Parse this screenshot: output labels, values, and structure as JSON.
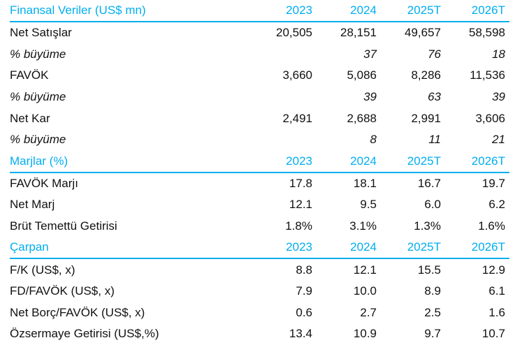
{
  "accent_color": "#00AEEF",
  "sections": [
    {
      "title": "Finansal Veriler (US$ mn)",
      "years": [
        "2023",
        "2024",
        "2025T",
        "2026T"
      ],
      "rows": [
        {
          "label": "Net Satışlar",
          "values": [
            "20,505",
            "28,151",
            "49,657",
            "58,598"
          ],
          "italic": false
        },
        {
          "label": "% büyüme",
          "values": [
            "",
            "37",
            "76",
            "18"
          ],
          "italic": true
        },
        {
          "label": "FAVÖK",
          "values": [
            "3,660",
            "5,086",
            "8,286",
            "11,536"
          ],
          "italic": false
        },
        {
          "label": "% büyüme",
          "values": [
            "",
            "39",
            "63",
            "39"
          ],
          "italic": true
        },
        {
          "label": "Net Kar",
          "values": [
            "2,491",
            "2,688",
            "2,991",
            "3,606"
          ],
          "italic": false
        },
        {
          "label": "% büyüme",
          "values": [
            "",
            "8",
            "11",
            "21"
          ],
          "italic": true
        }
      ]
    },
    {
      "title": "Marjlar (%)",
      "years": [
        "2023",
        "2024",
        "2025T",
        "2026T"
      ],
      "rows": [
        {
          "label": "FAVÖK Marjı",
          "values": [
            "17.8",
            "18.1",
            "16.7",
            "19.7"
          ],
          "italic": false
        },
        {
          "label": "Net Marj",
          "values": [
            "12.1",
            "9.5",
            "6.0",
            "6.2"
          ],
          "italic": false
        },
        {
          "label": "Brüt Temettü Getirisi",
          "values": [
            "1.8%",
            "3.1%",
            "1.3%",
            "1.6%"
          ],
          "italic": false
        }
      ]
    },
    {
      "title": "Çarpan",
      "years": [
        "2023",
        "2024",
        "2025T",
        "2026T"
      ],
      "rows": [
        {
          "label": "F/K (US$, x)",
          "values": [
            "8.8",
            "12.1",
            "15.5",
            "12.9"
          ],
          "italic": false
        },
        {
          "label": "FD/FAVÖK (US$, x)",
          "values": [
            "7.9",
            "10.0",
            "8.9",
            "6.1"
          ],
          "italic": false
        },
        {
          "label": "Net Borç/FAVÖK (US$, x)",
          "values": [
            "0.6",
            "2.7",
            "2.5",
            "1.6"
          ],
          "italic": false
        },
        {
          "label": "Özsermaye Getirisi (US$,%)",
          "values": [
            "13.4",
            "10.9",
            "9.7",
            "10.7"
          ],
          "italic": false
        }
      ]
    }
  ]
}
